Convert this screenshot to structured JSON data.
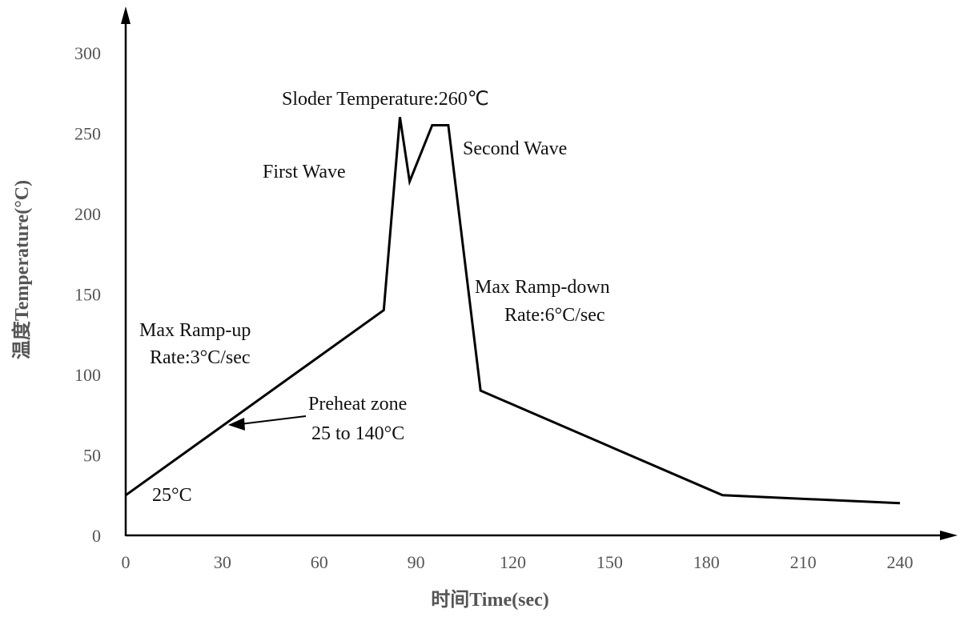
{
  "chart_data": {
    "type": "line",
    "title": "",
    "xlabel": "时间Time(sec)",
    "ylabel": "温度Temperature(°C)",
    "xlim": [
      0,
      240
    ],
    "ylim": [
      0,
      300
    ],
    "x_ticks": [
      "0",
      "30",
      "60",
      "90",
      "120",
      "150",
      "180",
      "210",
      "240"
    ],
    "y_ticks": [
      "0",
      "50",
      "100",
      "150",
      "200",
      "250",
      "300"
    ],
    "grid": false,
    "legend": "none",
    "series": [
      {
        "x": [
          0,
          80,
          85,
          88,
          95,
          100,
          110,
          185,
          240
        ],
        "y": [
          25,
          140,
          260,
          220,
          255,
          255,
          90,
          25,
          20
        ]
      }
    ],
    "annotations": {
      "solder_temp": "Sloder Temperature:260℃",
      "first_wave": "First Wave",
      "second_wave": "Second Wave",
      "ramp_down_line1": "Max Ramp-down",
      "ramp_down_line2": "Rate:6°C/sec",
      "ramp_up_line1": "Max Ramp-up",
      "ramp_up_line2": "Rate:3°C/sec",
      "preheat_line1": "Preheat zone",
      "preheat_line2": "25 to 140°C",
      "start_temp": "25°C"
    },
    "line_color": "#000000",
    "axis_color": "#000000"
  }
}
